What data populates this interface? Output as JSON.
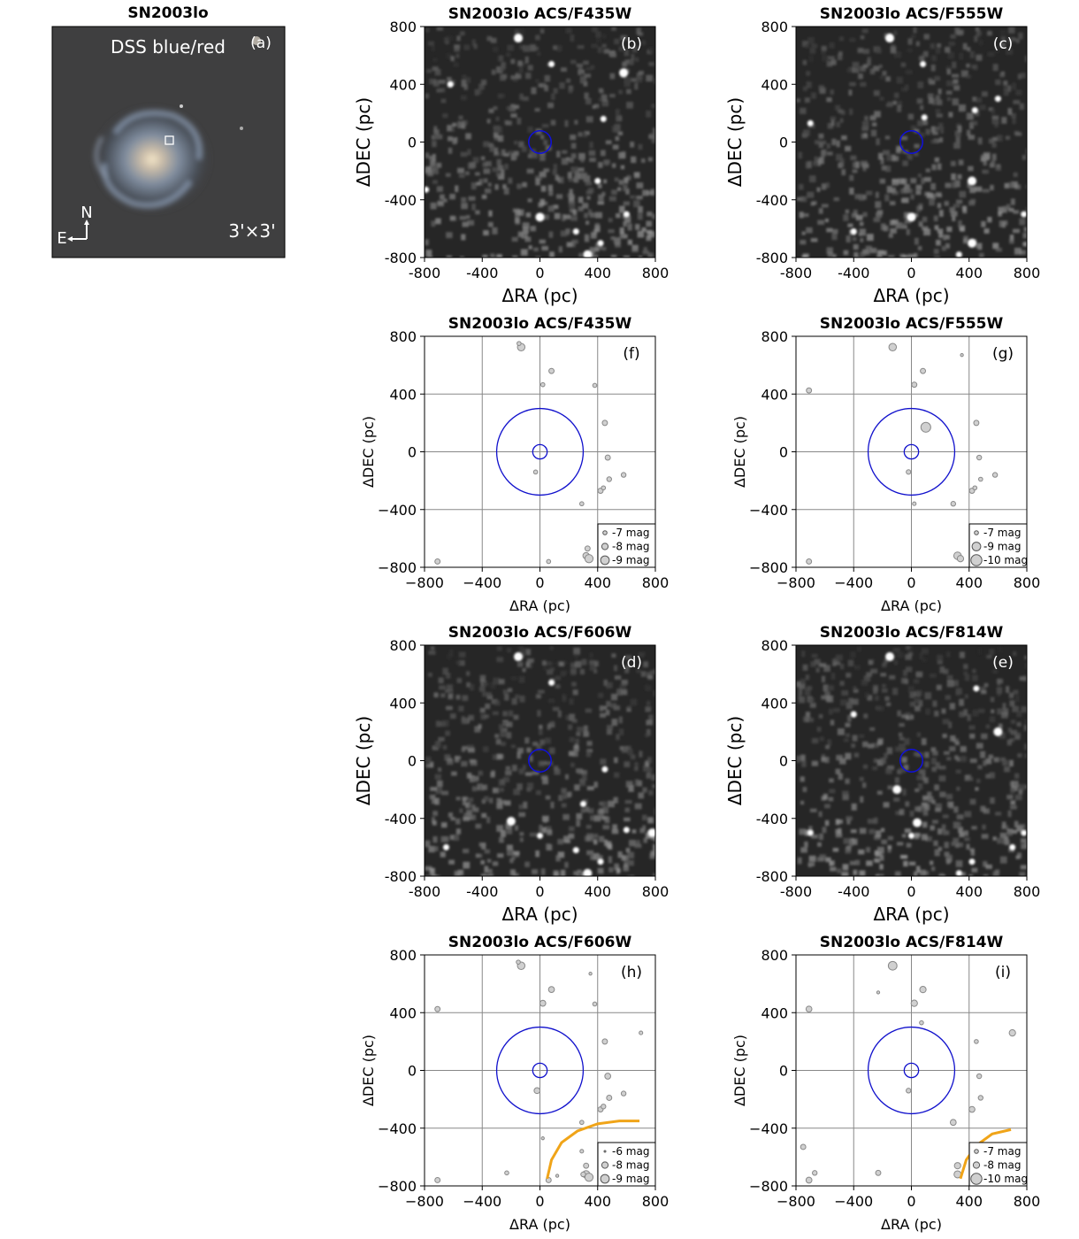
{
  "panel_a": {
    "title": "SN2003lo",
    "label": "(a)",
    "caption": "DSS blue/red",
    "scale": "3'×3'",
    "north": "N",
    "east": "E"
  },
  "chart_data": [
    {
      "id": "b",
      "type": "image",
      "title": "SN2003lo ACS/F435W",
      "label": "(b)",
      "xlabel": "ΔRA (pc)",
      "ylabel": "ΔDEC (pc)",
      "xlim": [
        -800,
        800
      ],
      "ylim": [
        -800,
        800
      ],
      "xticks": [
        "-800",
        "-400",
        "0",
        "400",
        "800"
      ],
      "yticks": [
        "-800",
        "-400",
        "0",
        "400",
        "800"
      ],
      "marker_circle": {
        "x": 0,
        "y": 0,
        "r": 30
      },
      "bright_sources": [
        [
          -150,
          720
        ],
        [
          80,
          540
        ],
        [
          -790,
          -330
        ],
        [
          0,
          -520
        ],
        [
          250,
          -620
        ],
        [
          420,
          -700
        ],
        [
          330,
          -780
        ],
        [
          600,
          -500
        ],
        [
          440,
          160
        ],
        [
          580,
          480
        ],
        [
          -620,
          400
        ],
        [
          400,
          -270
        ]
      ]
    },
    {
      "id": "c",
      "type": "image",
      "title": "SN2003lo ACS/F555W",
      "label": "(c)",
      "xlabel": "ΔRA (pc)",
      "ylabel": "ΔDEC (pc)",
      "xlim": [
        -800,
        800
      ],
      "ylim": [
        -800,
        800
      ],
      "xticks": [
        "-800",
        "-400",
        "0",
        "400",
        "800"
      ],
      "yticks": [
        "-800",
        "-400",
        "0",
        "400",
        "800"
      ],
      "marker_circle": {
        "x": 0,
        "y": 0,
        "r": 30
      },
      "bright_sources": [
        [
          -150,
          720
        ],
        [
          80,
          540
        ],
        [
          90,
          170
        ],
        [
          0,
          -520
        ],
        [
          -400,
          -620
        ],
        [
          330,
          -780
        ],
        [
          420,
          -700
        ],
        [
          780,
          -500
        ],
        [
          440,
          220
        ],
        [
          420,
          -270
        ],
        [
          -700,
          130
        ],
        [
          600,
          300
        ]
      ]
    },
    {
      "id": "f",
      "type": "scatter",
      "title": "SN2003lo ACS/F435W",
      "label": "(f)",
      "xlabel": "ΔRA (pc)",
      "ylabel": "ΔDEC (pc)",
      "xlim": [
        -800,
        800
      ],
      "ylim": [
        -800,
        800
      ],
      "xticks": [
        "−800",
        "−400",
        "0",
        "400",
        "800"
      ],
      "yticks": [
        "−800",
        "−400",
        "0",
        "400",
        "800"
      ],
      "inner_circle_r": 50,
      "outer_circle_r": 300,
      "points": [
        [
          -130,
          725,
          -8.5
        ],
        [
          -145,
          750,
          -7
        ],
        [
          80,
          560,
          -7.5
        ],
        [
          20,
          465,
          -7
        ],
        [
          380,
          460,
          -7
        ],
        [
          450,
          200,
          -7.5
        ],
        [
          470,
          -40,
          -7.5
        ],
        [
          480,
          -190,
          -7.3
        ],
        [
          580,
          -160,
          -7.3
        ],
        [
          420,
          -270,
          -7.5
        ],
        [
          440,
          -250,
          -7
        ],
        [
          -30,
          -140,
          -7
        ],
        [
          290,
          -360,
          -7
        ],
        [
          330,
          -670,
          -7.5
        ],
        [
          320,
          -720,
          -8
        ],
        [
          340,
          -740,
          -8.8
        ],
        [
          60,
          -760,
          -7
        ],
        [
          -710,
          -760,
          -7.5
        ]
      ],
      "legend": [
        "-7 mag",
        "-8 mag",
        "-9 mag"
      ],
      "legend_mags": [
        -7,
        -8,
        -9
      ]
    },
    {
      "id": "g",
      "type": "scatter",
      "title": "SN2003lo ACS/F555W",
      "label": "(g)",
      "xlabel": "ΔRA (pc)",
      "ylabel": "ΔDEC (pc)",
      "xlim": [
        -800,
        800
      ],
      "ylim": [
        -800,
        800
      ],
      "xticks": [
        "−800",
        "−400",
        "0",
        "400",
        "800"
      ],
      "yticks": [
        "−800",
        "−400",
        "0",
        "400",
        "800"
      ],
      "inner_circle_r": 50,
      "outer_circle_r": 300,
      "points": [
        [
          -130,
          725,
          -8.5
        ],
        [
          80,
          560,
          -7.5
        ],
        [
          20,
          465,
          -7.5
        ],
        [
          350,
          670,
          -6.5
        ],
        [
          -710,
          425,
          -7.5
        ],
        [
          100,
          170,
          -9.5
        ],
        [
          450,
          200,
          -7.5
        ],
        [
          470,
          -40,
          -7.3
        ],
        [
          480,
          -190,
          -7
        ],
        [
          580,
          -160,
          -7.3
        ],
        [
          420,
          -270,
          -7.5
        ],
        [
          440,
          -250,
          -7
        ],
        [
          -20,
          -140,
          -7.2
        ],
        [
          20,
          -360,
          -6.8
        ],
        [
          290,
          -360,
          -7.3
        ],
        [
          320,
          -720,
          -8.5
        ],
        [
          340,
          -740,
          -8
        ],
        [
          -710,
          -760,
          -7.5
        ]
      ],
      "legend": [
        "-7 mag",
        "-9 mag",
        "-10 mag"
      ],
      "legend_mags": [
        -7,
        -9,
        -10
      ]
    },
    {
      "id": "d",
      "type": "image",
      "title": "SN2003lo ACS/F606W",
      "label": "(d)",
      "xlabel": "ΔRA (pc)",
      "ylabel": "ΔDEC (pc)",
      "xlim": [
        -800,
        800
      ],
      "ylim": [
        -800,
        800
      ],
      "xticks": [
        "-800",
        "-400",
        "0",
        "400",
        "800"
      ],
      "yticks": [
        "-800",
        "-400",
        "0",
        "400",
        "800"
      ],
      "marker_circle": {
        "x": 0,
        "y": 0,
        "r": 30
      },
      "bright_sources": [
        [
          -150,
          720
        ],
        [
          80,
          540
        ],
        [
          0,
          -520
        ],
        [
          330,
          -780
        ],
        [
          420,
          -700
        ],
        [
          250,
          -620
        ],
        [
          -200,
          -420
        ],
        [
          450,
          -60
        ],
        [
          600,
          -480
        ],
        [
          780,
          -500
        ],
        [
          -650,
          -600
        ],
        [
          300,
          -300
        ]
      ]
    },
    {
      "id": "e",
      "type": "image",
      "title": "SN2003lo ACS/F814W",
      "label": "(e)",
      "xlabel": "ΔRA (pc)",
      "ylabel": "ΔDEC (pc)",
      "xlim": [
        -800,
        800
      ],
      "ylim": [
        -800,
        800
      ],
      "xticks": [
        "-800",
        "-400",
        "0",
        "400",
        "800"
      ],
      "yticks": [
        "-800",
        "-400",
        "0",
        "400",
        "800"
      ],
      "marker_circle": {
        "x": 0,
        "y": 0,
        "r": 30
      },
      "bright_sources": [
        [
          -150,
          720
        ],
        [
          -400,
          320
        ],
        [
          0,
          -520
        ],
        [
          40,
          -430
        ],
        [
          330,
          -780
        ],
        [
          420,
          -700
        ],
        [
          -100,
          -200
        ],
        [
          700,
          -600
        ],
        [
          780,
          -500
        ],
        [
          600,
          200
        ],
        [
          450,
          500
        ],
        [
          -700,
          -500
        ]
      ]
    },
    {
      "id": "h",
      "type": "scatter",
      "title": "SN2003lo ACS/F606W",
      "label": "(h)",
      "xlabel": "ΔRA (pc)",
      "ylabel": "ΔDEC (pc)",
      "xlim": [
        -800,
        800
      ],
      "ylim": [
        -800,
        800
      ],
      "xticks": [
        "−800",
        "−400",
        "0",
        "400",
        "800"
      ],
      "yticks": [
        "−800",
        "−400",
        "0",
        "400",
        "800"
      ],
      "inner_circle_r": 50,
      "outer_circle_r": 300,
      "points": [
        [
          -130,
          725,
          -8.5
        ],
        [
          -150,
          750,
          -7
        ],
        [
          80,
          560,
          -7.8
        ],
        [
          20,
          465,
          -7.8
        ],
        [
          350,
          670,
          -6.5
        ],
        [
          380,
          460,
          -7
        ],
        [
          700,
          260,
          -6.8
        ],
        [
          -710,
          425,
          -7.5
        ],
        [
          450,
          200,
          -7.5
        ],
        [
          470,
          -40,
          -7.8
        ],
        [
          480,
          -190,
          -7.5
        ],
        [
          580,
          -160,
          -7.3
        ],
        [
          420,
          -270,
          -7.5
        ],
        [
          440,
          -250,
          -7.3
        ],
        [
          -20,
          -140,
          -7.8
        ],
        [
          290,
          -360,
          -7
        ],
        [
          20,
          -470,
          -6.5
        ],
        [
          290,
          -560,
          -6.8
        ],
        [
          320,
          -660,
          -7.5
        ],
        [
          320,
          -720,
          -8.5
        ],
        [
          340,
          -740,
          -8.8
        ],
        [
          300,
          -720,
          -7.3
        ],
        [
          60,
          -760,
          -7.5
        ],
        [
          120,
          -730,
          -6.5
        ],
        [
          -230,
          -710,
          -7
        ],
        [
          -710,
          -760,
          -7.5
        ]
      ],
      "legend": [
        "-6 mag",
        "-8 mag",
        "-9 mag"
      ],
      "legend_mags": [
        -6,
        -8,
        -9
      ],
      "curve": [
        [
          50,
          -750
        ],
        [
          80,
          -620
        ],
        [
          150,
          -500
        ],
        [
          260,
          -420
        ],
        [
          400,
          -370
        ],
        [
          550,
          -350
        ],
        [
          690,
          -350
        ]
      ]
    },
    {
      "id": "i",
      "type": "scatter",
      "title": "SN2003lo ACS/F814W",
      "label": "(i)",
      "xlabel": "ΔRA (pc)",
      "ylabel": "ΔDEC (pc)",
      "xlim": [
        -800,
        800
      ],
      "ylim": [
        -800,
        800
      ],
      "xticks": [
        "−800",
        "−400",
        "0",
        "400",
        "800"
      ],
      "yticks": [
        "−800",
        "−400",
        "0",
        "400",
        "800"
      ],
      "inner_circle_r": 50,
      "outer_circle_r": 300,
      "points": [
        [
          -130,
          725,
          -9
        ],
        [
          80,
          560,
          -8
        ],
        [
          20,
          465,
          -8
        ],
        [
          -230,
          540,
          -6.5
        ],
        [
          70,
          330,
          -7
        ],
        [
          700,
          260,
          -8
        ],
        [
          -710,
          425,
          -7.8
        ],
        [
          450,
          200,
          -7
        ],
        [
          470,
          -40,
          -7.3
        ],
        [
          480,
          -190,
          -7.3
        ],
        [
          420,
          -270,
          -7.8
        ],
        [
          -20,
          -140,
          -7.3
        ],
        [
          290,
          -360,
          -7.8
        ],
        [
          -750,
          -530,
          -7.5
        ],
        [
          -670,
          -710,
          -7.3
        ],
        [
          -230,
          -710,
          -7.5
        ],
        [
          320,
          -660,
          -8
        ],
        [
          320,
          -720,
          -8.3
        ],
        [
          -710,
          -760,
          -7.8
        ]
      ],
      "legend": [
        "-7 mag",
        "-8 mag",
        "-10 mag"
      ],
      "legend_mags": [
        -7,
        -8,
        -10
      ],
      "curve": [
        [
          340,
          -750
        ],
        [
          380,
          -620
        ],
        [
          450,
          -520
        ],
        [
          560,
          -440
        ],
        [
          690,
          -410
        ]
      ]
    }
  ]
}
